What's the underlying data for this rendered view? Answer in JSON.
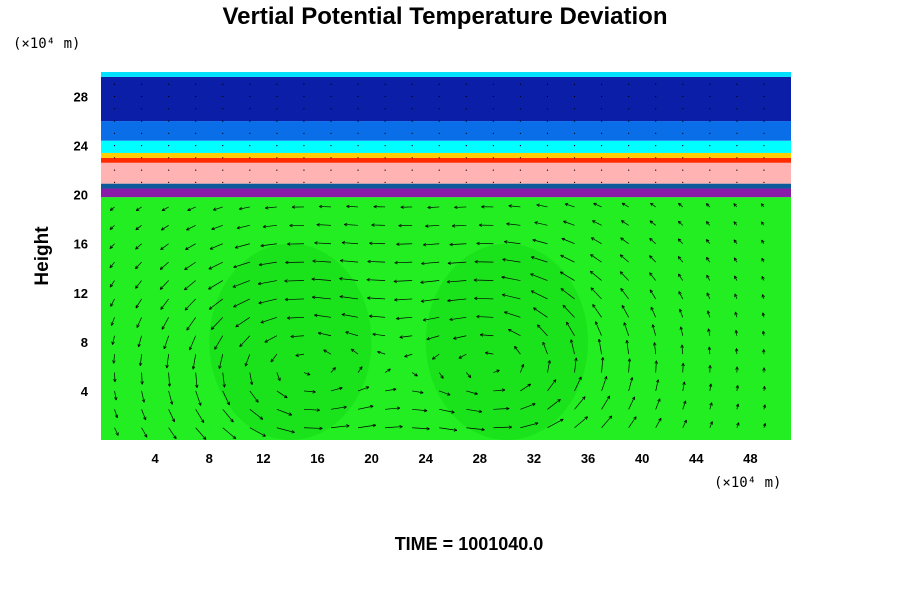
{
  "chart_data": {
    "type": "heatmap",
    "title": "Vertial Potential Temperature Deviation",
    "ylabel": "Height",
    "xlabel": "",
    "x_unit": "(×10⁴ m)",
    "y_unit": "(×10⁴ m)",
    "xlim": [
      0,
      51
    ],
    "ylim": [
      0,
      30
    ],
    "xticks": [
      4,
      8,
      12,
      16,
      20,
      24,
      28,
      32,
      36,
      40,
      44,
      48
    ],
    "yticks": [
      4,
      8,
      12,
      16,
      20,
      24,
      28
    ],
    "xtick_labels": [
      "4",
      "8",
      "12",
      "16",
      "20",
      "24",
      "28",
      "32",
      "36",
      "40",
      "44",
      "48"
    ],
    "ytick_labels": [
      "4",
      "8",
      "12",
      "16",
      "20",
      "24",
      "28"
    ],
    "layers": [
      {
        "from": 0,
        "to": 19.8,
        "color": "#22ee22"
      },
      {
        "from": 19.8,
        "to": 20.5,
        "color": "#8a1aa8"
      },
      {
        "from": 20.5,
        "to": 20.9,
        "color": "#0c5a9a"
      },
      {
        "from": 20.9,
        "to": 22.6,
        "color": "#ffb3b3"
      },
      {
        "from": 22.6,
        "to": 23.0,
        "color": "#ff2a00"
      },
      {
        "from": 23.0,
        "to": 23.4,
        "color": "#ffcc00"
      },
      {
        "from": 23.4,
        "to": 24.4,
        "color": "#00ffff"
      },
      {
        "from": 24.4,
        "to": 26.0,
        "color": "#0a6ee8"
      },
      {
        "from": 26.0,
        "to": 29.6,
        "color": "#0a1ea8"
      },
      {
        "from": 29.6,
        "to": 30.0,
        "color": "#00e0ff"
      }
    ],
    "vortex_centers_x": [
      14,
      30
    ],
    "vortex_center_y": 6,
    "time_label": "TIME = 1001040.0",
    "grid": false
  }
}
